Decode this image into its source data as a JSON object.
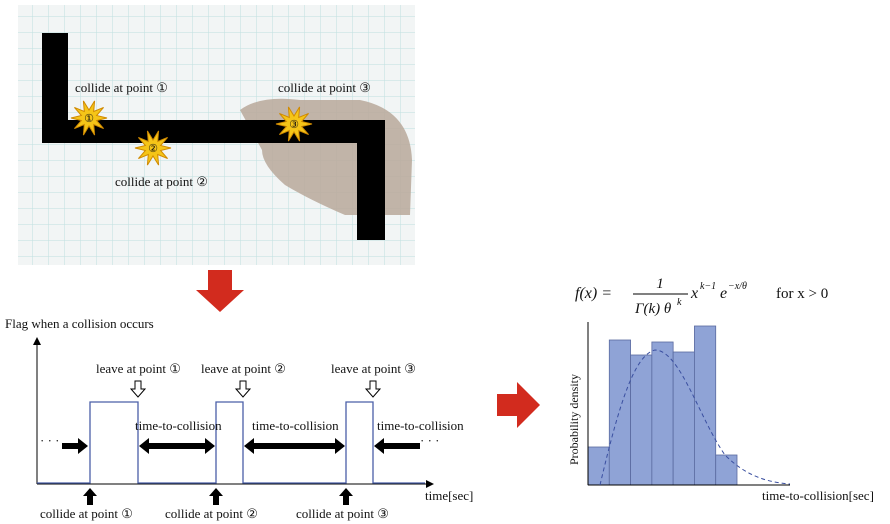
{
  "photo": {
    "labels": [
      "collide at point ①",
      "collide at point ②",
      "collide at point ③"
    ],
    "star_labels": [
      "①",
      "②",
      "③"
    ]
  },
  "timing": {
    "y_label": "Flag when a collision occurs",
    "x_label": "time[sec]",
    "leave_labels": [
      "leave at point ①",
      "leave at point ②",
      "leave at point ③"
    ],
    "collide_labels": [
      "collide at point ①",
      "collide at point ②",
      "collide at point ③"
    ],
    "gap_labels": [
      "time-to-collision",
      "time-to-collision",
      "time-to-collision"
    ],
    "ellipsis": [
      "· · ·",
      "· · ·"
    ]
  },
  "distribution": {
    "formula": {
      "lhs": "f(x) =",
      "numerator": "1",
      "denominator": "Γ(k) θ",
      "den_sup": "k",
      "body": "x",
      "body_sup": "k−1",
      "e": "e",
      "e_sup": "−x/θ",
      "condition": "for x > 0"
    },
    "y_label": "Probability density",
    "x_label": "time-to-collision[sec]",
    "histogram": {
      "values": [
        38,
        145,
        130,
        143,
        133,
        159,
        30
      ],
      "ylim": [
        0,
        165
      ],
      "color": "#8fa3d6"
    }
  }
}
